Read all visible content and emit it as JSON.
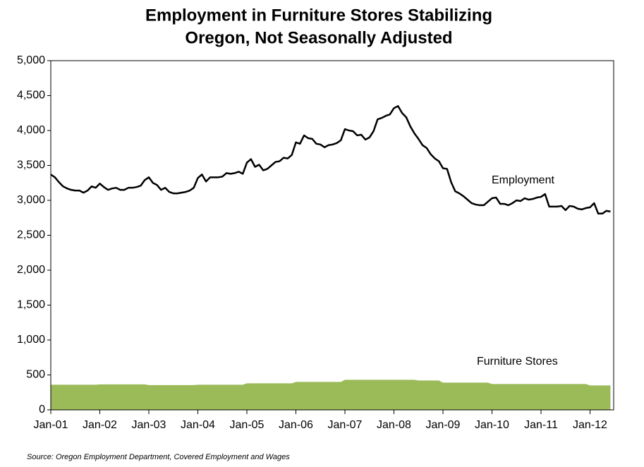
{
  "chart_data": {
    "type": "line",
    "title": "Employment in Furniture Stores Stabilizing",
    "subtitle": "Oregon, Not Seasonally Adjusted",
    "source": "Source: Oregon Employment Department, Covered Employment and Wages",
    "annotations": [
      "Employment",
      "Furniture Stores"
    ],
    "categories": [
      "Jan-01",
      null,
      null,
      null,
      null,
      null,
      null,
      null,
      null,
      null,
      null,
      null,
      "Jan-02",
      null,
      null,
      null,
      null,
      null,
      null,
      null,
      null,
      null,
      null,
      null,
      "Jan-03",
      null,
      null,
      null,
      null,
      null,
      null,
      null,
      null,
      null,
      null,
      null,
      "Jan-04",
      null,
      null,
      null,
      null,
      null,
      null,
      null,
      null,
      null,
      null,
      null,
      "Jan-05",
      null,
      null,
      null,
      null,
      null,
      null,
      null,
      null,
      null,
      null,
      null,
      "Jan-06",
      null,
      null,
      null,
      null,
      null,
      null,
      null,
      null,
      null,
      null,
      null,
      "Jan-07",
      null,
      null,
      null,
      null,
      null,
      null,
      null,
      null,
      null,
      null,
      null,
      "Jan-08",
      null,
      null,
      null,
      null,
      null,
      null,
      null,
      null,
      null,
      null,
      null,
      "Jan-09",
      null,
      null,
      null,
      null,
      null,
      null,
      null,
      null,
      null,
      null,
      null,
      "Jan-10",
      null,
      null,
      null,
      null,
      null,
      null,
      null,
      null,
      null,
      null,
      null,
      "Jan-11",
      null,
      null,
      null,
      null,
      null,
      null,
      null,
      null,
      null,
      null,
      null,
      "Jan-12",
      null,
      null,
      null,
      null,
      null
    ],
    "series": [
      {
        "name": "Furniture Stores",
        "kind": "area",
        "color": "#9bbb59",
        "values": [
          360,
          360,
          360,
          360,
          360,
          360,
          360,
          360,
          360,
          360,
          360,
          360,
          365,
          365,
          365,
          365,
          365,
          365,
          365,
          365,
          365,
          365,
          365,
          365,
          355,
          355,
          355,
          355,
          355,
          355,
          355,
          355,
          355,
          355,
          355,
          355,
          360,
          360,
          360,
          360,
          360,
          360,
          360,
          360,
          360,
          360,
          360,
          360,
          380,
          380,
          380,
          380,
          380,
          380,
          380,
          380,
          380,
          380,
          380,
          380,
          400,
          400,
          400,
          400,
          400,
          400,
          400,
          400,
          400,
          400,
          400,
          400,
          430,
          430,
          430,
          430,
          430,
          430,
          430,
          430,
          430,
          430,
          430,
          430,
          430,
          430,
          430,
          430,
          430,
          430,
          420,
          420,
          420,
          420,
          420,
          420,
          390,
          390,
          390,
          390,
          390,
          390,
          390,
          390,
          390,
          390,
          390,
          390,
          370,
          370,
          370,
          370,
          370,
          370,
          370,
          370,
          370,
          370,
          370,
          370,
          370,
          370,
          370,
          370,
          370,
          370,
          370,
          370,
          370,
          370,
          370,
          370,
          350,
          350,
          350,
          350,
          350,
          350
        ]
      },
      {
        "name": "Employment",
        "kind": "line",
        "color": "#000000",
        "values": [
          3370,
          3330,
          3260,
          3200,
          3170,
          3150,
          3140,
          3140,
          3110,
          3140,
          3200,
          3180,
          3240,
          3190,
          3150,
          3170,
          3180,
          3150,
          3150,
          3180,
          3180,
          3190,
          3210,
          3290,
          3330,
          3250,
          3220,
          3150,
          3180,
          3120,
          3100,
          3100,
          3110,
          3120,
          3140,
          3180,
          3320,
          3370,
          3270,
          3330,
          3330,
          3330,
          3340,
          3390,
          3380,
          3390,
          3410,
          3380,
          3540,
          3590,
          3480,
          3510,
          3430,
          3450,
          3500,
          3550,
          3560,
          3610,
          3600,
          3650,
          3830,
          3810,
          3930,
          3890,
          3880,
          3810,
          3800,
          3760,
          3790,
          3800,
          3820,
          3860,
          4020,
          4000,
          3990,
          3930,
          3940,
          3870,
          3900,
          3990,
          4160,
          4180,
          4210,
          4230,
          4320,
          4350,
          4250,
          4190,
          4060,
          3960,
          3880,
          3790,
          3750,
          3660,
          3600,
          3560,
          3460,
          3450,
          3260,
          3130,
          3100,
          3060,
          3010,
          2960,
          2940,
          2930,
          2930,
          2980,
          3030,
          3040,
          2950,
          2950,
          2930,
          2960,
          3000,
          2990,
          3030,
          3010,
          3020,
          3040,
          3050,
          3090,
          2910,
          2910,
          2910,
          2920,
          2860,
          2920,
          2910,
          2880,
          2870,
          2890,
          2900,
          2960,
          2810,
          2810,
          2850,
          2840
        ]
      }
    ],
    "ylim": [
      0,
      5000
    ],
    "yticks": [
      0,
      {
        "value": 500,
        "label": "500"
      },
      {
        "value": 1000,
        "label": "1,000"
      },
      {
        "value": 1500,
        "label": "1,500"
      },
      {
        "value": 2000,
        "label": "2,000"
      },
      {
        "value": 2500,
        "label": "2,500"
      },
      {
        "value": 3000,
        "label": "3,000"
      },
      {
        "value": 3500,
        "label": "3,500"
      },
      {
        "value": 4000,
        "label": "4,000"
      },
      {
        "value": 4500,
        "label": "4,500"
      },
      {
        "value": 5000,
        "label": "5,000"
      }
    ],
    "grid": false
  }
}
